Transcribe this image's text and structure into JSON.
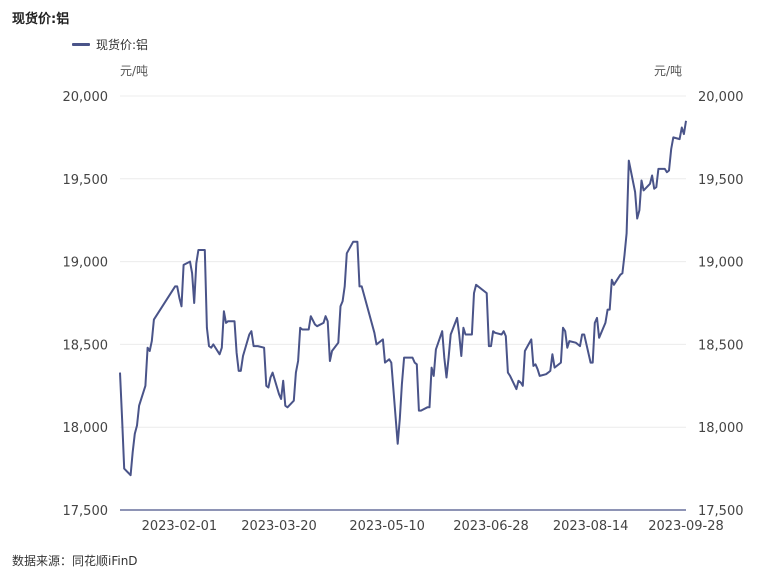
{
  "chart_data": {
    "type": "line",
    "title": "现货价:铝",
    "unit_left": "元/吨",
    "unit_right": "元/吨",
    "legend_position": "top-left",
    "grid": true,
    "ylim": [
      17500,
      20000
    ],
    "y_ticks": [
      "20,000",
      "19,500",
      "19,000",
      "18,500",
      "18,000",
      "17,500"
    ],
    "y_tick_values": [
      20000,
      19500,
      19000,
      18500,
      18000,
      17500
    ],
    "x_ticks": [
      "2023-02-01",
      "2023-03-20",
      "2023-05-10",
      "2023-06-28",
      "2023-08-14",
      "2023-09-28"
    ],
    "x_tick_dates": [
      "2023-02-01",
      "2023-03-20",
      "2023-05-10",
      "2023-06-28",
      "2023-08-14",
      "2023-09-28"
    ],
    "series": [
      {
        "name": "现货价:铝",
        "color": "#4a5489",
        "points": [
          [
            "2023-01-04",
            18330
          ],
          [
            "2023-01-05",
            18050
          ],
          [
            "2023-01-06",
            17750
          ],
          [
            "2023-01-09",
            17710
          ],
          [
            "2023-01-10",
            17850
          ],
          [
            "2023-01-11",
            17960
          ],
          [
            "2023-01-12",
            18010
          ],
          [
            "2023-01-13",
            18130
          ],
          [
            "2023-01-16",
            18250
          ],
          [
            "2023-01-17",
            18480
          ],
          [
            "2023-01-18",
            18460
          ],
          [
            "2023-01-19",
            18520
          ],
          [
            "2023-01-20",
            18650
          ],
          [
            "2023-01-30",
            18850
          ],
          [
            "2023-01-31",
            18850
          ],
          [
            "2023-02-01",
            18780
          ],
          [
            "2023-02-02",
            18730
          ],
          [
            "2023-02-03",
            18980
          ],
          [
            "2023-02-06",
            19000
          ],
          [
            "2023-02-07",
            18930
          ],
          [
            "2023-02-08",
            18750
          ],
          [
            "2023-02-09",
            18990
          ],
          [
            "2023-02-10",
            19070
          ],
          [
            "2023-02-13",
            19070
          ],
          [
            "2023-02-14",
            18600
          ],
          [
            "2023-02-15",
            18490
          ],
          [
            "2023-02-16",
            18480
          ],
          [
            "2023-02-17",
            18500
          ],
          [
            "2023-02-20",
            18440
          ],
          [
            "2023-02-21",
            18480
          ],
          [
            "2023-02-22",
            18700
          ],
          [
            "2023-02-23",
            18630
          ],
          [
            "2023-02-24",
            18640
          ],
          [
            "2023-02-27",
            18640
          ],
          [
            "2023-02-28",
            18450
          ],
          [
            "2023-03-01",
            18340
          ],
          [
            "2023-03-02",
            18340
          ],
          [
            "2023-03-03",
            18430
          ],
          [
            "2023-03-06",
            18560
          ],
          [
            "2023-03-07",
            18580
          ],
          [
            "2023-03-08",
            18490
          ],
          [
            "2023-03-09",
            18490
          ],
          [
            "2023-03-10",
            18490
          ],
          [
            "2023-03-13",
            18480
          ],
          [
            "2023-03-14",
            18250
          ],
          [
            "2023-03-15",
            18240
          ],
          [
            "2023-03-16",
            18300
          ],
          [
            "2023-03-17",
            18330
          ],
          [
            "2023-03-20",
            18200
          ],
          [
            "2023-03-21",
            18170
          ],
          [
            "2023-03-22",
            18280
          ],
          [
            "2023-03-23",
            18130
          ],
          [
            "2023-03-24",
            18120
          ],
          [
            "2023-03-27",
            18160
          ],
          [
            "2023-03-28",
            18330
          ],
          [
            "2023-03-29",
            18400
          ],
          [
            "2023-03-30",
            18600
          ],
          [
            "2023-03-31",
            18590
          ],
          [
            "2023-04-03",
            18590
          ],
          [
            "2023-04-04",
            18670
          ],
          [
            "2023-04-06",
            18620
          ],
          [
            "2023-04-07",
            18610
          ],
          [
            "2023-04-10",
            18630
          ],
          [
            "2023-04-11",
            18670
          ],
          [
            "2023-04-12",
            18640
          ],
          [
            "2023-04-13",
            18400
          ],
          [
            "2023-04-14",
            18460
          ],
          [
            "2023-04-17",
            18510
          ],
          [
            "2023-04-18",
            18730
          ],
          [
            "2023-04-19",
            18760
          ],
          [
            "2023-04-20",
            18850
          ],
          [
            "2023-04-21",
            19050
          ],
          [
            "2023-04-24",
            19120
          ],
          [
            "2023-04-25",
            19120
          ],
          [
            "2023-04-26",
            19120
          ],
          [
            "2023-04-27",
            18850
          ],
          [
            "2023-04-28",
            18850
          ],
          [
            "2023-05-04",
            18570
          ],
          [
            "2023-05-05",
            18500
          ],
          [
            "2023-05-08",
            18530
          ],
          [
            "2023-05-09",
            18390
          ],
          [
            "2023-05-10",
            18400
          ],
          [
            "2023-05-11",
            18410
          ],
          [
            "2023-05-12",
            18390
          ],
          [
            "2023-05-15",
            17900
          ],
          [
            "2023-05-16",
            18050
          ],
          [
            "2023-05-17",
            18260
          ],
          [
            "2023-05-18",
            18420
          ],
          [
            "2023-05-19",
            18420
          ],
          [
            "2023-05-22",
            18420
          ],
          [
            "2023-05-23",
            18390
          ],
          [
            "2023-05-24",
            18380
          ],
          [
            "2023-05-25",
            18100
          ],
          [
            "2023-05-26",
            18100
          ],
          [
            "2023-05-29",
            18120
          ],
          [
            "2023-05-30",
            18120
          ],
          [
            "2023-05-31",
            18360
          ],
          [
            "2023-06-01",
            18310
          ],
          [
            "2023-06-02",
            18470
          ],
          [
            "2023-06-05",
            18580
          ],
          [
            "2023-06-06",
            18420
          ],
          [
            "2023-06-07",
            18300
          ],
          [
            "2023-06-08",
            18420
          ],
          [
            "2023-06-09",
            18560
          ],
          [
            "2023-06-12",
            18660
          ],
          [
            "2023-06-13",
            18560
          ],
          [
            "2023-06-14",
            18430
          ],
          [
            "2023-06-15",
            18600
          ],
          [
            "2023-06-16",
            18560
          ],
          [
            "2023-06-19",
            18560
          ],
          [
            "2023-06-20",
            18810
          ],
          [
            "2023-06-21",
            18860
          ],
          [
            "2023-06-26",
            18810
          ],
          [
            "2023-06-27",
            18490
          ],
          [
            "2023-06-28",
            18490
          ],
          [
            "2023-06-29",
            18580
          ],
          [
            "2023-06-30",
            18570
          ],
          [
            "2023-07-03",
            18560
          ],
          [
            "2023-07-04",
            18580
          ],
          [
            "2023-07-05",
            18550
          ],
          [
            "2023-07-06",
            18330
          ],
          [
            "2023-07-07",
            18310
          ],
          [
            "2023-07-10",
            18230
          ],
          [
            "2023-07-11",
            18280
          ],
          [
            "2023-07-12",
            18270
          ],
          [
            "2023-07-13",
            18250
          ],
          [
            "2023-07-14",
            18460
          ],
          [
            "2023-07-17",
            18530
          ],
          [
            "2023-07-18",
            18370
          ],
          [
            "2023-07-19",
            18380
          ],
          [
            "2023-07-20",
            18350
          ],
          [
            "2023-07-21",
            18310
          ],
          [
            "2023-07-24",
            18320
          ],
          [
            "2023-07-25",
            18330
          ],
          [
            "2023-07-26",
            18340
          ],
          [
            "2023-07-27",
            18440
          ],
          [
            "2023-07-28",
            18360
          ],
          [
            "2023-07-31",
            18390
          ],
          [
            "2023-08-01",
            18600
          ],
          [
            "2023-08-02",
            18580
          ],
          [
            "2023-08-03",
            18480
          ],
          [
            "2023-08-04",
            18520
          ],
          [
            "2023-08-07",
            18510
          ],
          [
            "2023-08-08",
            18500
          ],
          [
            "2023-08-09",
            18490
          ],
          [
            "2023-08-10",
            18560
          ],
          [
            "2023-08-11",
            18560
          ],
          [
            "2023-08-14",
            18390
          ],
          [
            "2023-08-15",
            18390
          ],
          [
            "2023-08-16",
            18630
          ],
          [
            "2023-08-17",
            18660
          ],
          [
            "2023-08-18",
            18540
          ],
          [
            "2023-08-21",
            18630
          ],
          [
            "2023-08-22",
            18710
          ],
          [
            "2023-08-23",
            18710
          ],
          [
            "2023-08-24",
            18890
          ],
          [
            "2023-08-25",
            18860
          ],
          [
            "2023-08-28",
            18920
          ],
          [
            "2023-08-29",
            18930
          ],
          [
            "2023-08-30",
            19040
          ],
          [
            "2023-08-31",
            19170
          ],
          [
            "2023-09-01",
            19610
          ],
          [
            "2023-09-04",
            19420
          ],
          [
            "2023-09-05",
            19260
          ],
          [
            "2023-09-06",
            19310
          ],
          [
            "2023-09-07",
            19490
          ],
          [
            "2023-09-08",
            19430
          ],
          [
            "2023-09-11",
            19470
          ],
          [
            "2023-09-12",
            19520
          ],
          [
            "2023-09-13",
            19440
          ],
          [
            "2023-09-14",
            19450
          ],
          [
            "2023-09-15",
            19560
          ],
          [
            "2023-09-18",
            19560
          ],
          [
            "2023-09-19",
            19540
          ],
          [
            "2023-09-20",
            19550
          ],
          [
            "2023-09-21",
            19680
          ],
          [
            "2023-09-22",
            19750
          ],
          [
            "2023-09-25",
            19740
          ],
          [
            "2023-09-26",
            19810
          ],
          [
            "2023-09-27",
            19770
          ],
          [
            "2023-09-28",
            19850
          ]
        ]
      }
    ]
  },
  "source_text": "数据来源：同花顺iFinD"
}
